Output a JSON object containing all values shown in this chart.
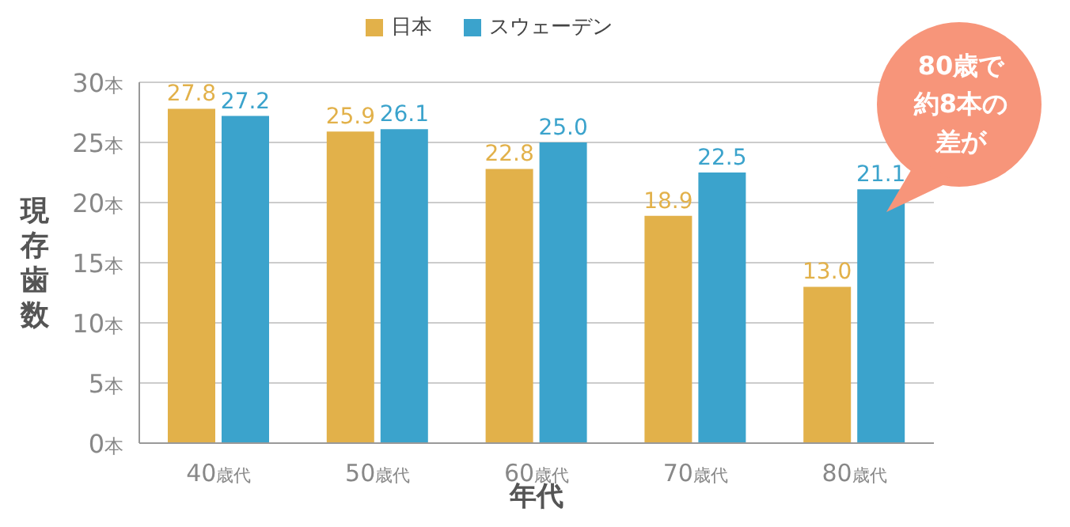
{
  "chart_data": {
    "type": "bar",
    "categories": [
      "40歳代",
      "50歳代",
      "60歳代",
      "70歳代",
      "80歳代"
    ],
    "series": [
      {
        "name": "日本",
        "color": "#e2b14a",
        "values": [
          27.8,
          25.9,
          22.8,
          18.9,
          13.0
        ],
        "value_labels": [
          "27.8",
          "25.9",
          "22.8",
          "18.9",
          "13.0"
        ]
      },
      {
        "name": "スウェーデン",
        "color": "#3ba3cc",
        "values": [
          27.2,
          26.1,
          25.0,
          22.5,
          21.1
        ],
        "value_labels": [
          "27.2",
          "26.1",
          "25.0",
          "22.5",
          "21.1"
        ]
      }
    ],
    "xlabel": "年代",
    "ylabel": "現存歯数",
    "ylim": [
      0,
      30
    ],
    "yticks": [
      {
        "value": 0,
        "label": "0本"
      },
      {
        "value": 5,
        "label": "5本"
      },
      {
        "value": 10,
        "label": "10本"
      },
      {
        "value": 15,
        "label": "15本"
      },
      {
        "value": 20,
        "label": "20本"
      },
      {
        "value": 25,
        "label": "25本"
      },
      {
        "value": 30,
        "label": "30本"
      }
    ],
    "grid": "y",
    "legend": "top",
    "annotations": [
      "80歳で約8本の差が"
    ]
  }
}
